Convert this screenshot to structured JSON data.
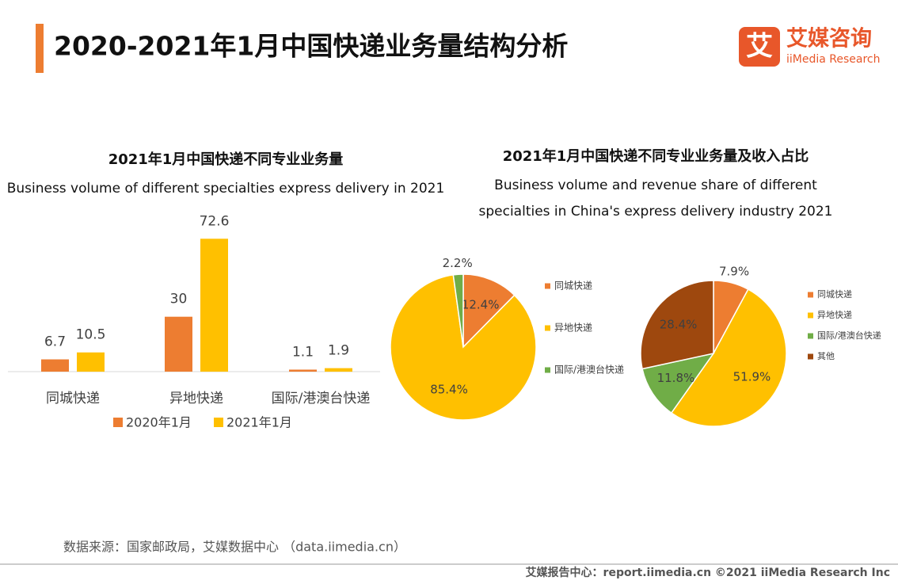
{
  "header": {
    "title": "2020-2021年1月中国快递业务量结构分析",
    "logo_icon": "艾",
    "logo_cn": "艾媒咨询",
    "logo_en": "iiMedia Research"
  },
  "chart_data": [
    {
      "type": "bar",
      "title": "2021年1月中国快递不同专业业务量",
      "subtitle": [
        "Business volume of different specialties express delivery in 2021"
      ],
      "categories": [
        "同城快递",
        "异地快递",
        "国际/港澳台快递"
      ],
      "series": [
        {
          "name": "2020年1月",
          "color": "#ed7d31",
          "values": [
            6.7,
            30,
            1.1
          ]
        },
        {
          "name": "2021年1月",
          "color": "#ffc000",
          "values": [
            10.5,
            72.6,
            1.9
          ]
        }
      ]
    },
    {
      "type": "pie",
      "title": "2021年1月中国快递不同专业业务量及收入占比",
      "subtitle": [
        "Business volume and revenue share of different",
        "specialties in China's express delivery industry 2021"
      ],
      "categories": [
        "同城快递",
        "异地快递",
        "国际/港澳台快递"
      ],
      "values": [
        12.4,
        85.4,
        2.2
      ],
      "value_labels": [
        "12.4%",
        "85.4%",
        "2.2%"
      ],
      "colors": [
        "#ed7d31",
        "#ffc000",
        "#70ad47"
      ]
    },
    {
      "type": "pie",
      "categories": [
        "同城快递",
        "异地快递",
        "国际/港澳台快递",
        "其他"
      ],
      "values": [
        7.9,
        51.9,
        11.8,
        28.4
      ],
      "value_labels": [
        "7.9%",
        "51.9%",
        "11.8%",
        "28.4%"
      ],
      "colors": [
        "#ed7d31",
        "#ffc000",
        "#70ad47",
        "#9e480e"
      ]
    }
  ],
  "source": "数据来源：国家邮政局，艾媒数据中心 （data.iimedia.cn）",
  "footer": "艾媒报告中心：report.iimedia.cn  ©2021  iiMedia Research  Inc"
}
